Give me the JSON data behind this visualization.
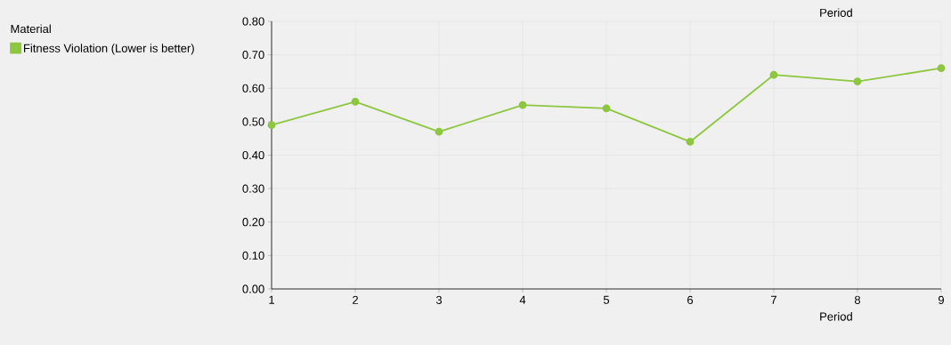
{
  "chart_data": {
    "type": "line",
    "xlabel": "Period",
    "x2label": "Period",
    "legend_title": "Material",
    "x": [
      1,
      2,
      3,
      4,
      5,
      6,
      7,
      8,
      9
    ],
    "series": [
      {
        "name": "Fitness Violation (Lower is better)",
        "color": "#8dc63f",
        "values": [
          0.49,
          0.56,
          0.47,
          0.55,
          0.54,
          0.44,
          0.64,
          0.62,
          0.66
        ]
      }
    ],
    "xlim": [
      1,
      9
    ],
    "xticks": [
      1,
      2,
      3,
      4,
      5,
      6,
      7,
      8,
      9
    ],
    "ylim": [
      0,
      0.8
    ],
    "yticks": [
      {
        "value": 0,
        "label": "0.00"
      },
      {
        "value": 0.1,
        "label": "0.10"
      },
      {
        "value": 0.2,
        "label": "0.20"
      },
      {
        "value": 0.3,
        "label": "0.30"
      },
      {
        "value": 0.4,
        "label": "0.40"
      },
      {
        "value": 0.5,
        "label": "0.50"
      },
      {
        "value": 0.6,
        "label": "0.60"
      },
      {
        "value": 0.7,
        "label": "0.70"
      },
      {
        "value": 0.8,
        "label": "0.80"
      }
    ],
    "grid": true,
    "legend": "left",
    "marker": "circle",
    "line_style": "solid"
  }
}
